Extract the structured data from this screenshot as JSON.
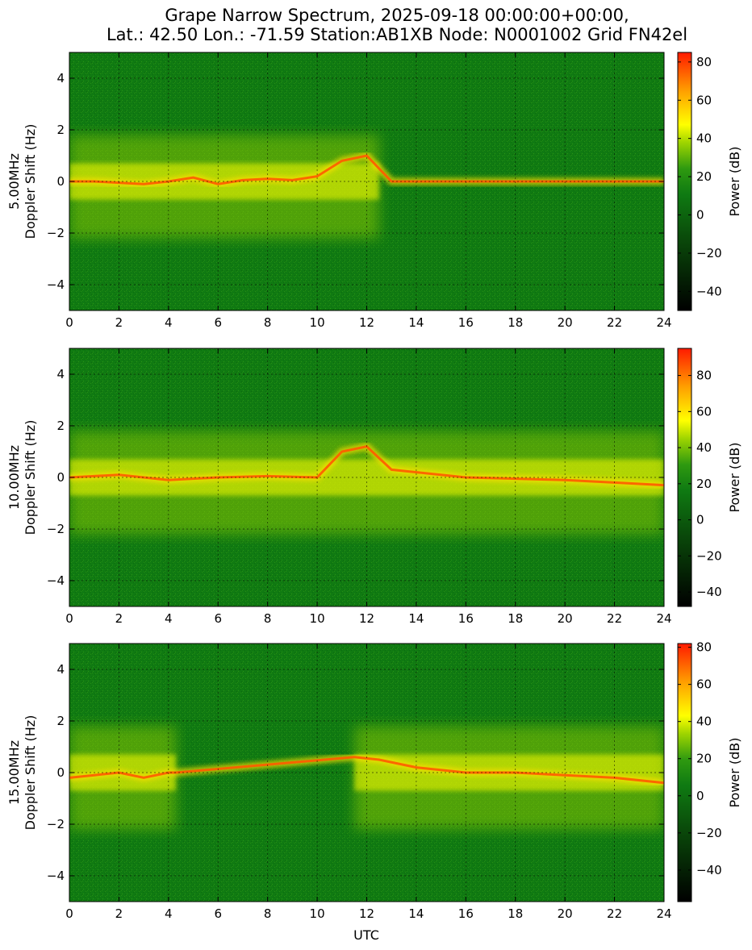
{
  "figure": {
    "title_line1": "Grape Narrow Spectrum, 2025-09-18 00:00:00+00:00,",
    "title_line2": "Lat.: 42.50 Lon.: -71.59 Station:AB1XB Node: N0001002 Grid FN42el",
    "xlabel": "UTC",
    "colorbar_label": "Power (dB)"
  },
  "colormap": {
    "stops": [
      [
        0.0,
        "#000000"
      ],
      [
        0.28,
        "#0a4a0a"
      ],
      [
        0.45,
        "#0f7a12"
      ],
      [
        0.55,
        "#2f9a10"
      ],
      [
        0.65,
        "#9ed400"
      ],
      [
        0.72,
        "#ffff00"
      ],
      [
        0.85,
        "#ffa000"
      ],
      [
        1.0,
        "#ff1a00"
      ]
    ],
    "background": "#107a12"
  },
  "chart_data": [
    {
      "type": "heatmap",
      "frequency_label": "5.00MHz",
      "ylabel": "Doppler Shift (Hz)",
      "xlim": [
        0,
        24
      ],
      "ylim": [
        -5,
        5
      ],
      "x_ticks": [
        "0",
        "2",
        "4",
        "6",
        "8",
        "10",
        "12",
        "14",
        "16",
        "18",
        "20",
        "22",
        "24"
      ],
      "y_ticks": [
        "4",
        "2",
        "0",
        "−2",
        "−4"
      ],
      "colorbar_range": [
        -50,
        85
      ],
      "colorbar_ticks": [
        "80",
        "60",
        "40",
        "20",
        "0",
        "−20",
        "−40"
      ],
      "colorbar_tick_values": [
        80,
        60,
        40,
        20,
        0,
        -20,
        -40
      ],
      "grid": true,
      "trace": [
        {
          "utc": 0,
          "hz": 0.0
        },
        {
          "utc": 1,
          "hz": 0.0
        },
        {
          "utc": 2,
          "hz": -0.05
        },
        {
          "utc": 3,
          "hz": -0.1
        },
        {
          "utc": 4,
          "hz": 0.0
        },
        {
          "utc": 5,
          "hz": 0.15
        },
        {
          "utc": 6,
          "hz": -0.1
        },
        {
          "utc": 7,
          "hz": 0.05
        },
        {
          "utc": 8,
          "hz": 0.1
        },
        {
          "utc": 9,
          "hz": 0.05
        },
        {
          "utc": 10,
          "hz": 0.2
        },
        {
          "utc": 11,
          "hz": 0.8
        },
        {
          "utc": 12,
          "hz": 1.0
        },
        {
          "utc": 13,
          "hz": 0.0
        },
        {
          "utc": 22,
          "hz": 0.0
        },
        {
          "utc": 24,
          "hz": 0.0
        }
      ],
      "active_until_utc": 12.5
    },
    {
      "type": "heatmap",
      "frequency_label": "10.00MHz",
      "ylabel": "Doppler Shift (Hz)",
      "xlim": [
        0,
        24
      ],
      "ylim": [
        -5,
        5
      ],
      "x_ticks": [
        "0",
        "2",
        "4",
        "6",
        "8",
        "10",
        "12",
        "14",
        "16",
        "18",
        "20",
        "22",
        "24"
      ],
      "y_ticks": [
        "4",
        "2",
        "0",
        "−2",
        "−4"
      ],
      "colorbar_range": [
        -48,
        95
      ],
      "colorbar_ticks": [
        "80",
        "60",
        "40",
        "20",
        "0",
        "−20",
        "−40"
      ],
      "colorbar_tick_values": [
        80,
        60,
        40,
        20,
        0,
        -20,
        -40
      ],
      "grid": true,
      "trace": [
        {
          "utc": 0,
          "hz": 0.0
        },
        {
          "utc": 2,
          "hz": 0.1
        },
        {
          "utc": 4,
          "hz": -0.1
        },
        {
          "utc": 6,
          "hz": 0.0
        },
        {
          "utc": 8,
          "hz": 0.05
        },
        {
          "utc": 10,
          "hz": 0.0
        },
        {
          "utc": 11,
          "hz": 1.0
        },
        {
          "utc": 12,
          "hz": 1.2
        },
        {
          "utc": 13,
          "hz": 0.3
        },
        {
          "utc": 16,
          "hz": 0.0
        },
        {
          "utc": 20,
          "hz": -0.1
        },
        {
          "utc": 22,
          "hz": -0.2
        },
        {
          "utc": 24,
          "hz": -0.3
        }
      ],
      "active_until_utc": 24
    },
    {
      "type": "heatmap",
      "frequency_label": "15.00MHz",
      "ylabel": "Doppler Shift (Hz)",
      "xlim": [
        0,
        24
      ],
      "ylim": [
        -5,
        5
      ],
      "x_ticks": [
        "0",
        "2",
        "4",
        "6",
        "8",
        "10",
        "12",
        "14",
        "16",
        "18",
        "20",
        "22",
        "24"
      ],
      "y_ticks": [
        "4",
        "2",
        "0",
        "−2",
        "−4"
      ],
      "colorbar_range": [
        -57,
        82
      ],
      "colorbar_ticks": [
        "80",
        "60",
        "40",
        "20",
        "0",
        "−20",
        "−40"
      ],
      "colorbar_tick_values": [
        80,
        60,
        40,
        20,
        0,
        -20,
        -40
      ],
      "grid": true,
      "trace": [
        {
          "utc": 0,
          "hz": -0.2
        },
        {
          "utc": 1,
          "hz": -0.1
        },
        {
          "utc": 2,
          "hz": 0.0
        },
        {
          "utc": 3,
          "hz": -0.2
        },
        {
          "utc": 4,
          "hz": 0.0
        },
        {
          "utc": 4.3,
          "hz": 0.0
        },
        {
          "utc": 11.5,
          "hz": 0.6
        },
        {
          "utc": 12.5,
          "hz": 0.5
        },
        {
          "utc": 14,
          "hz": 0.2
        },
        {
          "utc": 16,
          "hz": 0.0
        },
        {
          "utc": 18,
          "hz": 0.0
        },
        {
          "utc": 20,
          "hz": -0.1
        },
        {
          "utc": 22,
          "hz": -0.2
        },
        {
          "utc": 24,
          "hz": -0.4
        }
      ],
      "active_ranges_utc": [
        [
          0,
          4.3
        ],
        [
          11.5,
          24
        ]
      ]
    }
  ]
}
